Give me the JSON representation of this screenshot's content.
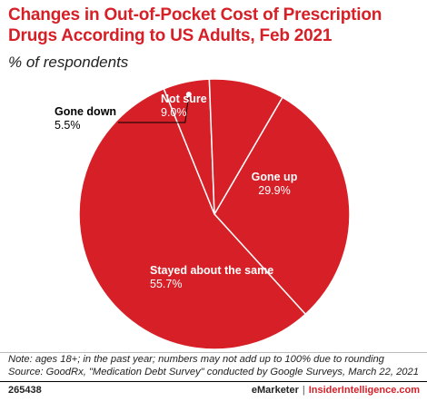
{
  "title_line1": "Changes in Out-of-Pocket Cost of Prescription",
  "title_line2": "Drugs According to US Adults, Feb 2021",
  "subtitle": "% of respondents",
  "colors": {
    "accent": "#d61f26",
    "slice_border": "#ffffff",
    "label_light": "#ffffff",
    "label_dark": "#000000"
  },
  "chart_data": {
    "type": "pie",
    "title": "Changes in Out-of-Pocket Cost of Prescription Drugs According to US Adults, Feb 2021",
    "subtitle": "% of respondents",
    "unit": "%",
    "legend": "none",
    "slices": [
      {
        "label": "Gone up",
        "value": 29.9,
        "value_label": "29.9%"
      },
      {
        "label": "Stayed about the same",
        "value": 55.7,
        "value_label": "55.7%"
      },
      {
        "label": "Gone down",
        "value": 5.5,
        "value_label": "5.5%"
      },
      {
        "label": "Not sure",
        "value": 9.0,
        "value_label": "9.0%"
      }
    ]
  },
  "footnote_line1": "Note: ages 18+; in the past year; numbers may not add up to 100% due to rounding",
  "footnote_line2": "Source: GoodRx, \"Medication Debt Survey\" conducted by Google Surveys, March 22, 2021",
  "footer": {
    "chart_id": "265438",
    "brand_primary": "eMarketer",
    "separator": "|",
    "brand_secondary": "InsiderIntelligence.com"
  }
}
